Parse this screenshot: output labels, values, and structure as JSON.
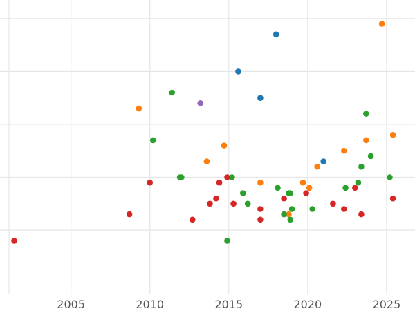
{
  "chart_data": {
    "type": "scatter",
    "title": "",
    "xlabel": "",
    "ylabel": "",
    "grid": true,
    "x_ticks": [
      "2005",
      "2010",
      "2015",
      "2020",
      "2025"
    ],
    "y_tick_count": 5,
    "colors": {
      "blue": "#1f77b4",
      "orange": "#ff7f0e",
      "green": "#2ca02c",
      "red": "#d62728",
      "purple": "#9467bd"
    },
    "series": [
      {
        "color": "#1f77b4",
        "points": [
          [
            2015.6,
            3.6
          ],
          [
            2017.0,
            3.1
          ],
          [
            2018.0,
            4.3
          ],
          [
            2021.0,
            1.9
          ]
        ]
      },
      {
        "color": "#ff7f0e",
        "points": [
          [
            2009.3,
            2.9
          ],
          [
            2013.6,
            1.9
          ],
          [
            2014.7,
            2.2
          ],
          [
            2017.0,
            1.5
          ],
          [
            2018.8,
            0.9
          ],
          [
            2019.7,
            1.5
          ],
          [
            2020.1,
            1.4
          ],
          [
            2020.6,
            1.8
          ],
          [
            2022.3,
            2.1
          ],
          [
            2023.7,
            2.3
          ],
          [
            2024.7,
            4.5
          ],
          [
            2025.4,
            2.4
          ]
        ]
      },
      {
        "color": "#2ca02c",
        "points": [
          [
            2010.2,
            2.3
          ],
          [
            2011.4,
            3.2
          ],
          [
            2011.9,
            1.6
          ],
          [
            2012.0,
            1.6
          ],
          [
            2014.9,
            0.4
          ],
          [
            2015.2,
            1.6
          ],
          [
            2015.9,
            1.3
          ],
          [
            2016.2,
            1.1
          ],
          [
            2018.1,
            1.4
          ],
          [
            2018.5,
            0.9
          ],
          [
            2018.8,
            1.3
          ],
          [
            2018.9,
            1.3
          ],
          [
            2018.9,
            0.8
          ],
          [
            2019.0,
            1.0
          ],
          [
            2020.3,
            1.0
          ],
          [
            2022.4,
            1.4
          ],
          [
            2023.2,
            1.5
          ],
          [
            2023.4,
            1.8
          ],
          [
            2023.7,
            2.8
          ],
          [
            2024.0,
            2.0
          ],
          [
            2025.2,
            1.6
          ]
        ]
      },
      {
        "color": "#d62728",
        "points": [
          [
            2001.4,
            0.4
          ],
          [
            2008.7,
            0.9
          ],
          [
            2010.0,
            1.5
          ],
          [
            2012.7,
            0.8
          ],
          [
            2013.8,
            1.1
          ],
          [
            2014.2,
            1.2
          ],
          [
            2014.4,
            1.5
          ],
          [
            2014.9,
            1.6
          ],
          [
            2015.3,
            1.1
          ],
          [
            2017.0,
            1.0
          ],
          [
            2017.0,
            0.8
          ],
          [
            2018.5,
            1.2
          ],
          [
            2019.9,
            1.3
          ],
          [
            2021.6,
            1.1
          ],
          [
            2022.3,
            1.0
          ],
          [
            2023.0,
            1.4
          ],
          [
            2023.4,
            0.9
          ],
          [
            2025.4,
            1.2
          ]
        ]
      },
      {
        "color": "#9467bd",
        "points": [
          [
            2013.2,
            3.0
          ]
        ]
      }
    ],
    "xlim": [
      2000.5,
      2026.8
    ],
    "ylim": [
      -0.6,
      4.95
    ],
    "y_grid_values": [
      0.6,
      1.6,
      2.6,
      3.6,
      4.6
    ]
  }
}
